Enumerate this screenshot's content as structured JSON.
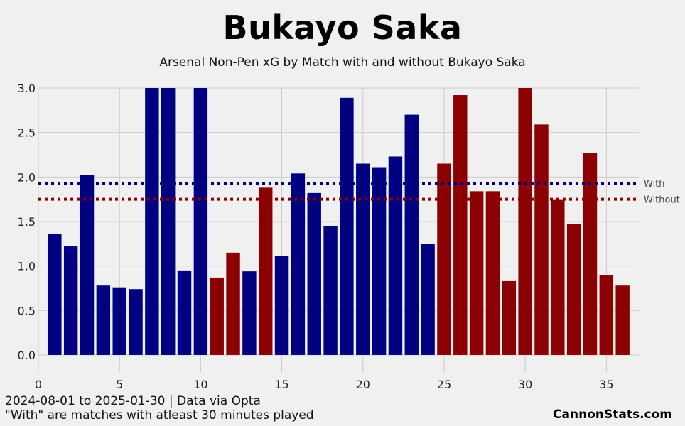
{
  "header": {
    "title": "Bukayo Saka",
    "subtitle": "Arsenal Non-Pen xG by Match with and without Bukayo Saka"
  },
  "footer": {
    "line1": "2024-08-01 to 2025-01-30 | Data via Opta",
    "line2": "\"With\" are matches with atleast 30 minutes played",
    "brand": "CannonStats.com"
  },
  "chart_data": {
    "type": "bar",
    "x": [
      1,
      2,
      3,
      4,
      5,
      6,
      7,
      8,
      9,
      10,
      11,
      12,
      13,
      14,
      15,
      16,
      17,
      18,
      19,
      20,
      21,
      22,
      23,
      24,
      25,
      26,
      27,
      28,
      29,
      30,
      31,
      32,
      33,
      34,
      35,
      36
    ],
    "values": [
      1.36,
      1.22,
      2.02,
      0.78,
      0.76,
      0.74,
      3.0,
      3.0,
      0.95,
      3.0,
      0.87,
      1.15,
      0.94,
      1.88,
      1.11,
      2.04,
      1.82,
      1.45,
      2.89,
      2.15,
      2.11,
      2.23,
      2.7,
      1.25,
      2.15,
      2.92,
      1.84,
      1.84,
      0.83,
      3.0,
      2.59,
      1.75,
      1.47,
      2.27,
      0.9,
      0.78
    ],
    "groups": [
      "with",
      "with",
      "with",
      "with",
      "with",
      "with",
      "with",
      "with",
      "with",
      "with",
      "without",
      "without",
      "with",
      "without",
      "with",
      "with",
      "with",
      "with",
      "with",
      "with",
      "with",
      "with",
      "with",
      "with",
      "without",
      "without",
      "without",
      "without",
      "without",
      "without",
      "without",
      "without",
      "without",
      "without",
      "without",
      "without"
    ],
    "colors": {
      "with": "#000080",
      "without": "#8b0000"
    },
    "averages": [
      {
        "label": "With",
        "value": 1.93,
        "color": "#000080"
      },
      {
        "label": "Without",
        "value": 1.75,
        "color": "#8b0000"
      }
    ],
    "xlim": [
      0,
      37
    ],
    "ylim": [
      -0.2,
      3.0
    ],
    "xticks": [
      0,
      5,
      10,
      15,
      20,
      25,
      30,
      35
    ],
    "yticks": [
      "0.0",
      "0.5",
      "1.0",
      "1.5",
      "2.0",
      "2.5",
      "3.0"
    ],
    "grid": true
  }
}
